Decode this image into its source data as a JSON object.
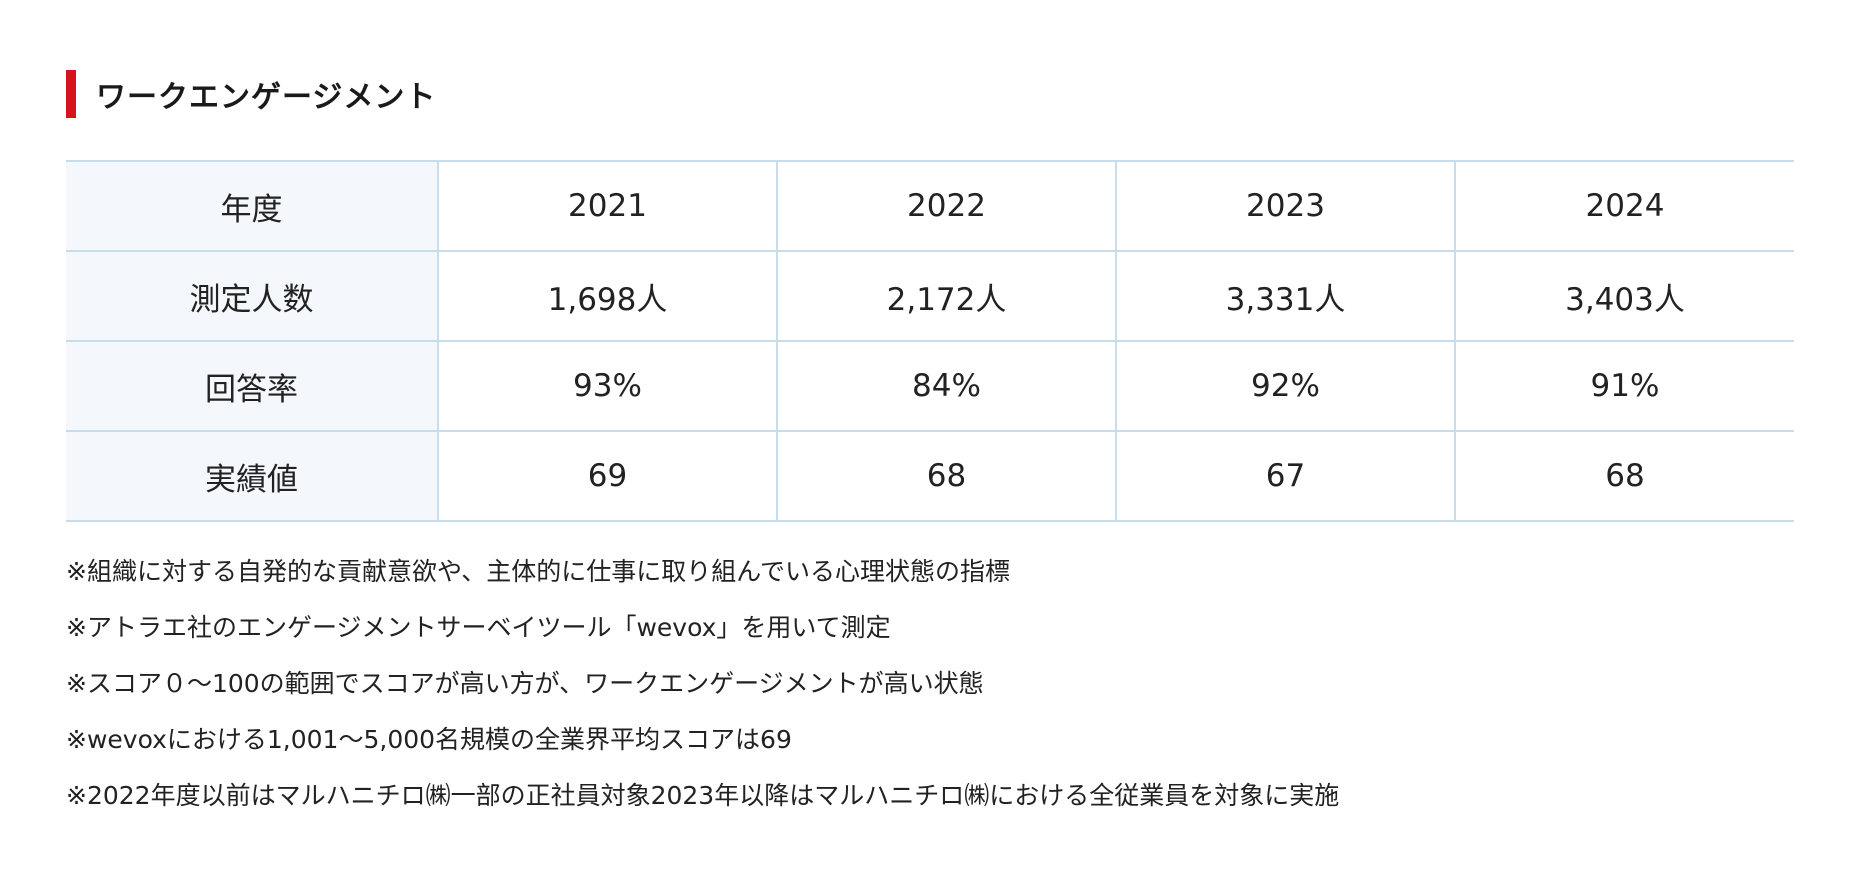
{
  "heading": "ワークエンゲージメント",
  "table": {
    "header_label": "年度",
    "years": [
      "2021",
      "2022",
      "2023",
      "2024"
    ],
    "rows": [
      {
        "label": "測定人数",
        "values": [
          "1,698人",
          "2,172人",
          "3,331人",
          "3,403人"
        ]
      },
      {
        "label": "回答率",
        "values": [
          "93%",
          "84%",
          "92%",
          "91%"
        ]
      },
      {
        "label": "実績値",
        "values": [
          "69",
          "68",
          "67",
          "68"
        ]
      }
    ]
  },
  "notes": [
    "※組織に対する自発的な貢献意欲や、主体的に仕事に取り組んでいる心理状態の指標",
    "※アトラエ社のエンゲージメントサーベイツール「wevox」を用いて測定",
    "※スコア０〜100の範囲でスコアが高い方が、ワークエンゲージメントが高い状態",
    "※wevoxにおける1,001〜5,000名規模の全業界平均スコアは69",
    "※2022年度以前はマルハニチロ㈱一部の正社員対象2023年以降はマルハニチロ㈱における全従業員を対象に実施"
  ],
  "colors": {
    "accent": "#d7141c",
    "border": "#c8dceb",
    "header_cell_bg": "#f4f7fb"
  }
}
